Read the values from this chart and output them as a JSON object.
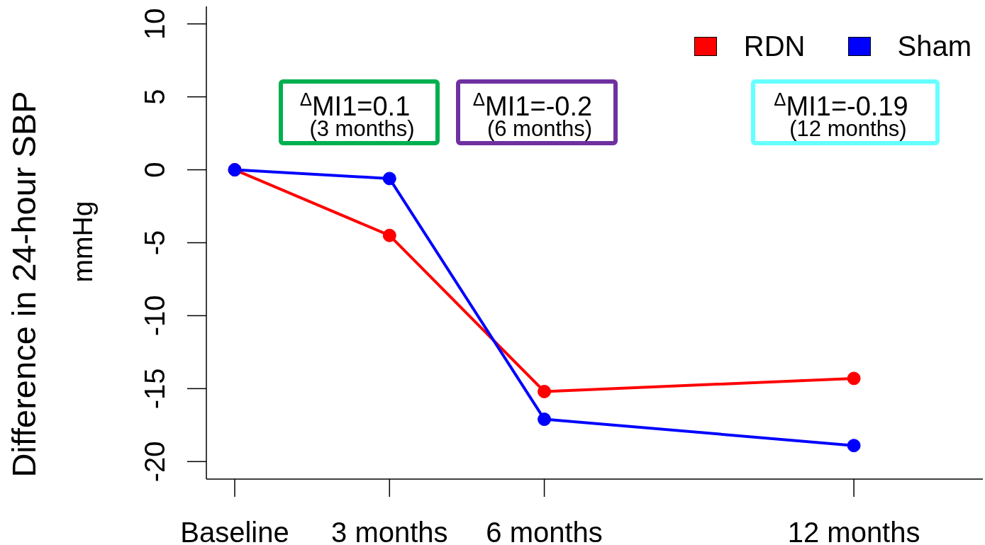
{
  "chart_data": {
    "type": "line",
    "x": [
      0,
      3,
      6,
      12
    ],
    "series": [
      {
        "name": "RDN",
        "color": "#ff0000",
        "values": [
          0,
          -4.5,
          -15.2,
          -14.3
        ]
      },
      {
        "name": "Sham",
        "color": "#0000ff",
        "values": [
          0,
          -0.6,
          -17.1,
          -18.9
        ]
      }
    ],
    "ylabel": "Difference in 24-hour SBP\nmmHg",
    "xlim": [
      -0.55,
      14.5
    ],
    "xticks": [
      {
        "value": 0,
        "label": "Baseline"
      },
      {
        "value": 3,
        "label": "3 months"
      },
      {
        "value": 6,
        "label": "6 months"
      },
      {
        "value": 12,
        "label": "12 months"
      }
    ],
    "ylim": [
      -21.2,
      11.2
    ],
    "yticks": [
      -20,
      -15,
      -10,
      -5,
      0,
      5,
      10
    ],
    "annotations": [
      "$^{Δ}$MI1=0.1\n(3 months)",
      "$^{Δ}$MI1=-0.2\n(6 months)",
      "$^{Δ}$MI1=-0.19\n(12 months)"
    ],
    "legend": "top right",
    "marker": "circle"
  }
}
